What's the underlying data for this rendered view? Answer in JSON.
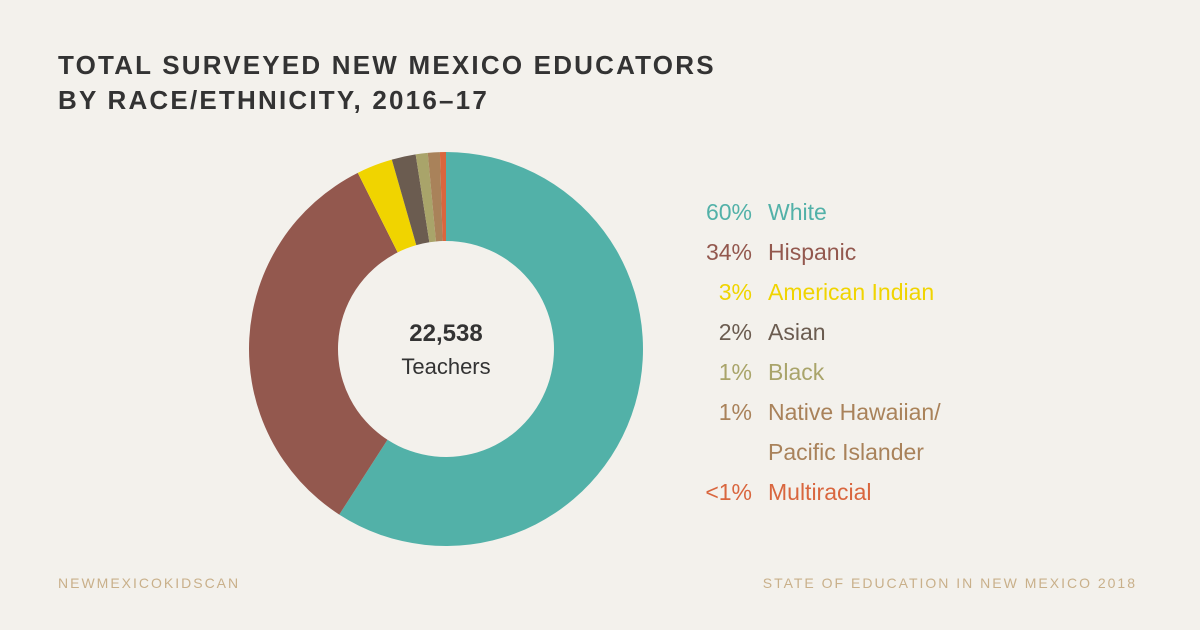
{
  "chart_data": {
    "type": "donut",
    "title": [
      "TOTAL SURVEYED NEW MEXICO EDUCATORS",
      "BY RACE/ETHNICITY, 2016–17"
    ],
    "center_label": "22,538",
    "center_caption": "Teachers",
    "categories": [
      "White",
      "Hispanic",
      "American Indian",
      "Asian",
      "Black",
      "Native Hawaiian/ Pacific Islander",
      "Multiracial"
    ],
    "values": [
      60,
      34,
      3,
      2,
      1,
      1,
      0.5
    ],
    "value_labels": [
      "60%",
      "34%",
      "3%",
      "2%",
      "1%",
      "1%",
      "<1%"
    ],
    "colors": [
      "#52b1a8",
      "#93584e",
      "#f0d400",
      "#6b5c50",
      "#a9a46a",
      "#a9825a",
      "#d9663e"
    ]
  },
  "footer": {
    "left": "NEWMEXICOKIDSCAN",
    "right": "STATE OF EDUCATION IN NEW MEXICO 2018"
  }
}
